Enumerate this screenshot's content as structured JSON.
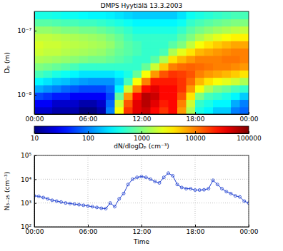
{
  "chart_data": [
    {
      "type": "heatmap",
      "title": "DMPS Hyytiälä 13.3.2003",
      "ylabel": "Dₚ (m)",
      "log": "y",
      "xlim": [
        0,
        24
      ],
      "xticks": [
        {
          "value": 0,
          "label": "00:00"
        },
        {
          "value": 6,
          "label": "06:00"
        },
        {
          "value": 12,
          "label": "12:00"
        },
        {
          "value": 18,
          "label": "18:00"
        },
        {
          "value": 24,
          "label": "00:00"
        }
      ],
      "ylim": [
        5e-09,
        2e-07
      ],
      "yticks": [
        {
          "value": 1e-08,
          "label": "10⁻⁸"
        },
        {
          "value": 1e-07,
          "label": "10⁻⁷"
        }
      ],
      "x_edges": [
        0,
        1,
        2,
        3,
        4,
        5,
        6,
        7,
        8,
        9,
        10,
        11,
        12,
        13,
        14,
        15,
        16,
        17,
        18,
        19,
        20,
        21,
        22,
        23,
        24
      ],
      "y_edges": [
        5e-09,
        6.5e-09,
        8.47e-09,
        1.1e-08,
        1.43e-08,
        1.87e-08,
        2.43e-08,
        3.16e-08,
        4.11e-08,
        5.35e-08,
        6.97e-08,
        9.06e-08,
        1.18e-07,
        1.53e-07,
        2e-07
      ],
      "z": [
        [
          20,
          20,
          15,
          15,
          15,
          10,
          10,
          15,
          100,
          3000,
          20000,
          40000,
          50000,
          30000,
          20000,
          30000,
          8000,
          1500,
          400,
          300,
          200,
          200,
          100,
          80
        ],
        [
          30,
          30,
          20,
          20,
          20,
          15,
          15,
          20,
          80,
          2000,
          15000,
          40000,
          60000,
          40000,
          25000,
          30000,
          10000,
          2000,
          500,
          400,
          300,
          300,
          150,
          100
        ],
        [
          60,
          50,
          40,
          40,
          30,
          30,
          30,
          30,
          60,
          800,
          8000,
          30000,
          60000,
          50000,
          30000,
          30000,
          15000,
          4000,
          1000,
          600,
          500,
          400,
          300,
          200
        ],
        [
          150,
          120,
          100,
          80,
          70,
          60,
          60,
          60,
          80,
          300,
          2000,
          10000,
          30000,
          40000,
          30000,
          30000,
          20000,
          8000,
          3000,
          1500,
          1000,
          800,
          600,
          500
        ],
        [
          300,
          250,
          200,
          180,
          150,
          130,
          120,
          120,
          120,
          200,
          600,
          3000,
          10000,
          25000,
          25000,
          25000,
          20000,
          12000,
          6000,
          4000,
          3000,
          2500,
          2000,
          1500
        ],
        [
          600,
          500,
          400,
          350,
          300,
          250,
          250,
          250,
          250,
          300,
          400,
          800,
          3000,
          8000,
          15000,
          20000,
          18000,
          15000,
          10000,
          8000,
          7000,
          6000,
          5000,
          4000
        ],
        [
          1000,
          900,
          800,
          700,
          600,
          500,
          500,
          500,
          500,
          500,
          500,
          500,
          800,
          2000,
          5000,
          10000,
          12000,
          13000,
          12000,
          11000,
          10000,
          10000,
          9000,
          8000
        ],
        [
          1500,
          1400,
          1300,
          1200,
          1100,
          1000,
          900,
          900,
          800,
          700,
          600,
          500,
          500,
          700,
          1500,
          4000,
          6000,
          8000,
          10000,
          10000,
          10000,
          11000,
          11000,
          10000
        ],
        [
          2000,
          1800,
          1800,
          1600,
          1500,
          1400,
          1300,
          1200,
          1000,
          800,
          700,
          600,
          500,
          500,
          600,
          1500,
          2500,
          4000,
          6000,
          7000,
          8000,
          9000,
          10000,
          10000
        ],
        [
          2200,
          2000,
          2000,
          1800,
          1700,
          1600,
          1500,
          1400,
          1200,
          900,
          700,
          600,
          500,
          500,
          500,
          700,
          1000,
          1800,
          3000,
          4000,
          5000,
          6000,
          7000,
          7000
        ],
        [
          1800,
          1800,
          1700,
          1600,
          1500,
          1400,
          1300,
          1200,
          1000,
          800,
          600,
          500,
          500,
          500,
          500,
          500,
          700,
          1000,
          1500,
          2000,
          2500,
          3000,
          3500,
          3500
        ],
        [
          1200,
          1200,
          1100,
          1000,
          1000,
          900,
          900,
          800,
          700,
          600,
          500,
          400,
          400,
          400,
          400,
          400,
          500,
          700,
          900,
          1100,
          1300,
          1500,
          1700,
          1800
        ],
        [
          700,
          700,
          650,
          600,
          600,
          550,
          550,
          500,
          450,
          400,
          350,
          300,
          300,
          300,
          300,
          300,
          350,
          500,
          600,
          700,
          800,
          900,
          1000,
          1000
        ],
        [
          400,
          400,
          380,
          350,
          350,
          320,
          300,
          300,
          280,
          250,
          220,
          200,
          200,
          200,
          200,
          200,
          250,
          350,
          400,
          450,
          500,
          550,
          600,
          600
        ]
      ],
      "colorbar": {
        "label": "dN/dlogDₚ (cm⁻³)",
        "lim": [
          10,
          100000
        ],
        "ticks": [
          10,
          100,
          1000,
          10000,
          100000
        ]
      }
    },
    {
      "type": "line",
      "ylabel": "N₃₋₂₅ (cm⁻³)",
      "xlabel": "Time",
      "log": "y",
      "grid": true,
      "marker": "circle",
      "color": "#2040d0",
      "xlim": [
        0,
        24
      ],
      "xticks": [
        {
          "value": 0,
          "label": "00:00"
        },
        {
          "value": 6,
          "label": "06:00"
        },
        {
          "value": 12,
          "label": "12:00"
        },
        {
          "value": 18,
          "label": "18:00"
        },
        {
          "value": 24,
          "label": "00:00"
        }
      ],
      "ylim": [
        100,
        100000
      ],
      "yticks": [
        {
          "value": 100,
          "label": "10²"
        },
        {
          "value": 1000,
          "label": "10³"
        },
        {
          "value": 10000,
          "label": "10⁴"
        },
        {
          "value": 100000,
          "label": "10⁵"
        }
      ],
      "x": [
        0,
        0.5,
        1,
        1.5,
        2,
        2.5,
        3,
        3.5,
        4,
        4.5,
        5,
        5.5,
        6,
        6.5,
        7,
        7.5,
        8,
        8.5,
        9,
        9.5,
        10,
        10.5,
        11,
        11.5,
        12,
        12.5,
        13,
        13.5,
        14,
        14.5,
        15,
        15.5,
        16,
        16.5,
        17,
        17.5,
        18,
        18.5,
        19,
        19.5,
        20,
        20.5,
        21,
        21.5,
        22,
        22.5,
        23,
        23.5,
        24
      ],
      "values": [
        2000,
        1900,
        1700,
        1500,
        1300,
        1200,
        1100,
        1000,
        950,
        900,
        850,
        800,
        750,
        700,
        650,
        600,
        580,
        1000,
        700,
        1500,
        2500,
        6000,
        10000,
        12000,
        13000,
        12000,
        10000,
        8000,
        7000,
        12000,
        18000,
        14000,
        6000,
        4500,
        4000,
        4000,
        3500,
        3500,
        3600,
        4000,
        9000,
        6000,
        4000,
        3000,
        2500,
        2000,
        1800,
        1200,
        1000
      ]
    }
  ]
}
